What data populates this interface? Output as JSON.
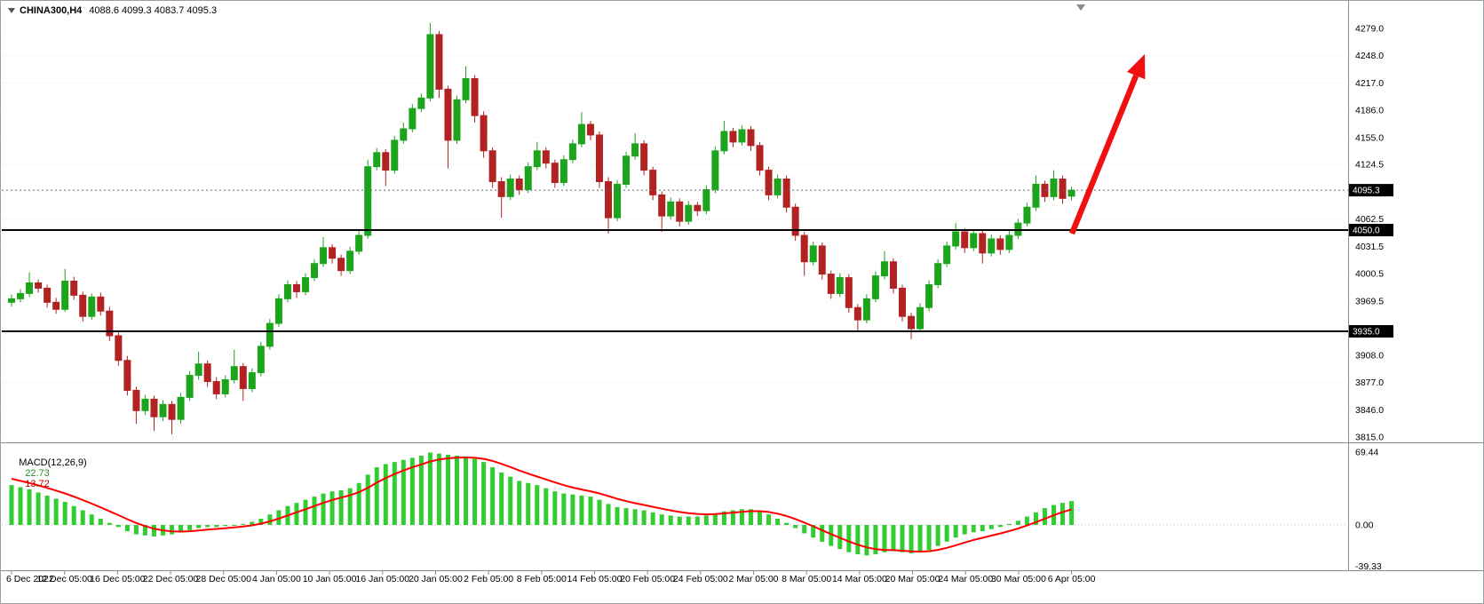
{
  "header": {
    "symbol": "CHINA300,H4",
    "ohlc": "4088.6 4099.3 4083.7 4095.3"
  },
  "macd_panel": {
    "label": "MACD(12,26,9)",
    "value_main": "22.73",
    "value_signal": "13.72"
  },
  "price_axis": {
    "ticks": [
      "4279.0",
      "4248.0",
      "4217.0",
      "4186.0",
      "4155.0",
      "4124.5",
      "4093.5",
      "4062.5",
      "4031.5",
      "4000.5",
      "3969.5",
      "3938.5",
      "3908.0",
      "3877.0",
      "3846.0",
      "3815.0"
    ],
    "badges": [
      {
        "label": "4095.3",
        "price": 4095.3,
        "type": "current-price"
      },
      {
        "label": "4050.0",
        "price": 4050.0,
        "type": "line"
      },
      {
        "label": "3935.0",
        "price": 3935.0,
        "type": "line"
      }
    ]
  },
  "colors": {
    "bull": "#1ca41c",
    "bear": "#b22222",
    "hist": "#32cd32",
    "signal": "#ff0000",
    "grid": "#e4e4ec",
    "separator": "#8a8a8a",
    "axis_text": "#000000",
    "badge_bg": "#000000",
    "badge_text": "#ffffff",
    "line_black": "#000000",
    "arrow": "#f01010",
    "current_price_dash": "#666666",
    "shift_marker": "#8a8a8a"
  },
  "annotations": {
    "arrow": {
      "from": [
        1206,
        262
      ],
      "tip": [
        1288,
        60
      ],
      "width": 6.5
    },
    "shift_marker_x": 1216
  },
  "chart_data": [
    {
      "type": "candlestick",
      "title": "CHINA300 H4",
      "ohlc_current": {
        "open": 4088.6,
        "high": 4099.3,
        "low": 4083.7,
        "close": 4095.3
      },
      "price_line": 4095.3,
      "hlines": [
        4050.0,
        3935.0
      ],
      "ylim": [
        3815.0,
        4279.0
      ],
      "y_ticks": [
        4279.0,
        4248.0,
        4217.0,
        4186.0,
        4155.0,
        4124.5,
        4093.5,
        4062.5,
        4031.5,
        4000.5,
        3969.5,
        3938.5,
        3908.0,
        3877.0,
        3846.0,
        3815.0
      ],
      "x_labels": [
        "6 Dec 2022",
        "12 Dec 05:00",
        "16 Dec 05:00",
        "22 Dec 05:00",
        "28 Dec 05:00",
        "4 Jan 05:00",
        "10 Jan 05:00",
        "16 Jan 05:00",
        "20 Jan 05:00",
        "2 Feb 05:00",
        "8 Feb 05:00",
        "14 Feb 05:00",
        "20 Feb 05:00",
        "24 Feb 05:00",
        "2 Mar 05:00",
        "8 Mar 05:00",
        "14 Mar 05:00",
        "20 Mar 05:00",
        "24 Mar 05:00",
        "30 Mar 05:00",
        "6 Apr 05:00"
      ],
      "candles": [
        [
          3968,
          3977,
          3963,
          3972
        ],
        [
          3972,
          3983,
          3968,
          3978
        ],
        [
          3978,
          4002,
          3974,
          3990
        ],
        [
          3990,
          3994,
          3979,
          3984
        ],
        [
          3984,
          3988,
          3962,
          3968
        ],
        [
          3968,
          3973,
          3955,
          3960
        ],
        [
          3960,
          4006,
          3957,
          3992
        ],
        [
          3992,
          3997,
          3971,
          3976
        ],
        [
          3976,
          3980,
          3946,
          3952
        ],
        [
          3952,
          3978,
          3948,
          3974
        ],
        [
          3974,
          3979,
          3953,
          3958
        ],
        [
          3958,
          3963,
          3924,
          3930
        ],
        [
          3930,
          3935,
          3896,
          3902
        ],
        [
          3902,
          3907,
          3862,
          3868
        ],
        [
          3868,
          3872,
          3830,
          3845
        ],
        [
          3845,
          3863,
          3840,
          3858
        ],
        [
          3858,
          3862,
          3822,
          3838
        ],
        [
          3838,
          3857,
          3833,
          3852
        ],
        [
          3852,
          3856,
          3818,
          3835
        ],
        [
          3835,
          3865,
          3830,
          3860
        ],
        [
          3860,
          3890,
          3856,
          3885
        ],
        [
          3885,
          3912,
          3880,
          3898
        ],
        [
          3898,
          3902,
          3872,
          3878
        ],
        [
          3878,
          3883,
          3858,
          3864
        ],
        [
          3864,
          3885,
          3860,
          3880
        ],
        [
          3880,
          3914,
          3876,
          3895
        ],
        [
          3895,
          3899,
          3856,
          3870
        ],
        [
          3870,
          3893,
          3866,
          3888
        ],
        [
          3888,
          3923,
          3884,
          3918
        ],
        [
          3918,
          3949,
          3914,
          3944
        ],
        [
          3944,
          3977,
          3940,
          3972
        ],
        [
          3972,
          3993,
          3968,
          3988
        ],
        [
          3988,
          3992,
          3973,
          3980
        ],
        [
          3980,
          4001,
          3976,
          3996
        ],
        [
          3996,
          4017,
          3992,
          4012
        ],
        [
          4012,
          4042,
          4008,
          4030
        ],
        [
          4030,
          4034,
          4012,
          4018
        ],
        [
          4018,
          4022,
          3998,
          4004
        ],
        [
          4004,
          4031,
          4000,
          4026
        ],
        [
          4026,
          4049,
          4022,
          4044
        ],
        [
          4044,
          4130,
          4040,
          4122
        ],
        [
          4122,
          4143,
          4118,
          4138
        ],
        [
          4138,
          4142,
          4100,
          4118
        ],
        [
          4118,
          4157,
          4114,
          4152
        ],
        [
          4152,
          4172,
          4148,
          4165
        ],
        [
          4165,
          4193,
          4161,
          4188
        ],
        [
          4188,
          4205,
          4184,
          4200
        ],
        [
          4200,
          4285,
          4196,
          4272
        ],
        [
          4272,
          4276,
          4200,
          4210
        ],
        [
          4210,
          4214,
          4120,
          4152
        ],
        [
          4152,
          4203,
          4148,
          4198
        ],
        [
          4198,
          4236,
          4194,
          4222
        ],
        [
          4222,
          4226,
          4172,
          4180
        ],
        [
          4180,
          4185,
          4132,
          4140
        ],
        [
          4140,
          4144,
          4098,
          4105
        ],
        [
          4105,
          4110,
          4064,
          4088
        ],
        [
          4088,
          4113,
          4084,
          4108
        ],
        [
          4108,
          4112,
          4090,
          4096
        ],
        [
          4096,
          4127,
          4092,
          4122
        ],
        [
          4122,
          4150,
          4118,
          4140
        ],
        [
          4140,
          4144,
          4120,
          4126
        ],
        [
          4126,
          4130,
          4098,
          4104
        ],
        [
          4104,
          4135,
          4100,
          4130
        ],
        [
          4130,
          4153,
          4126,
          4148
        ],
        [
          4148,
          4184,
          4144,
          4170
        ],
        [
          4170,
          4174,
          4152,
          4158
        ],
        [
          4158,
          4162,
          4098,
          4105
        ],
        [
          4105,
          4110,
          4046,
          4064
        ],
        [
          4064,
          4107,
          4060,
          4102
        ],
        [
          4102,
          4139,
          4098,
          4134
        ],
        [
          4134,
          4160,
          4130,
          4148
        ],
        [
          4148,
          4152,
          4112,
          4118
        ],
        [
          4118,
          4122,
          4084,
          4090
        ],
        [
          4090,
          4094,
          4048,
          4066
        ],
        [
          4066,
          4087,
          4062,
          4082
        ],
        [
          4082,
          4086,
          4054,
          4060
        ],
        [
          4060,
          4083,
          4056,
          4078
        ],
        [
          4078,
          4082,
          4066,
          4072
        ],
        [
          4072,
          4101,
          4068,
          4096
        ],
        [
          4096,
          4145,
          4092,
          4140
        ],
        [
          4140,
          4174,
          4136,
          4162
        ],
        [
          4162,
          4166,
          4144,
          4150
        ],
        [
          4150,
          4169,
          4146,
          4164
        ],
        [
          4164,
          4168,
          4140,
          4146
        ],
        [
          4146,
          4150,
          4112,
          4118
        ],
        [
          4118,
          4122,
          4084,
          4090
        ],
        [
          4090,
          4113,
          4086,
          4108
        ],
        [
          4108,
          4112,
          4070,
          4076
        ],
        [
          4076,
          4080,
          4038,
          4044
        ],
        [
          4044,
          4048,
          3998,
          4014
        ],
        [
          4014,
          4037,
          4010,
          4032
        ],
        [
          4032,
          4036,
          3994,
          4000
        ],
        [
          4000,
          4004,
          3972,
          3978
        ],
        [
          3978,
          4001,
          3974,
          3996
        ],
        [
          3996,
          4000,
          3956,
          3962
        ],
        [
          3962,
          3966,
          3934,
          3948
        ],
        [
          3948,
          3977,
          3944,
          3972
        ],
        [
          3972,
          4003,
          3968,
          3998
        ],
        [
          3998,
          4026,
          3994,
          4014
        ],
        [
          4014,
          4018,
          3978,
          3984
        ],
        [
          3984,
          3988,
          3946,
          3952
        ],
        [
          3952,
          3956,
          3926,
          3938
        ],
        [
          3938,
          3967,
          3934,
          3962
        ],
        [
          3962,
          3993,
          3958,
          3988
        ],
        [
          3988,
          4017,
          3984,
          4012
        ],
        [
          4012,
          4037,
          4008,
          4032
        ],
        [
          4032,
          4058,
          4028,
          4048
        ],
        [
          4048,
          4052,
          4024,
          4030
        ],
        [
          4030,
          4051,
          4026,
          4046
        ],
        [
          4046,
          4050,
          4012,
          4024
        ],
        [
          4024,
          4045,
          4020,
          4040
        ],
        [
          4040,
          4044,
          4022,
          4028
        ],
        [
          4028,
          4049,
          4024,
          4044
        ],
        [
          4044,
          4063,
          4040,
          4058
        ],
        [
          4058,
          4081,
          4054,
          4076
        ],
        [
          4076,
          4112,
          4072,
          4102
        ],
        [
          4102,
          4106,
          4082,
          4088
        ],
        [
          4088,
          4118,
          4084,
          4108
        ],
        [
          4108,
          4112,
          4080,
          4086
        ],
        [
          4088.6,
          4099.3,
          4083.7,
          4095.3
        ]
      ]
    },
    {
      "type": "bar",
      "title": "MACD(12,26,9)",
      "current_values": [
        22.73,
        13.72
      ],
      "y_ticks": [
        "69.44",
        "0.00",
        "-39.33"
      ],
      "ylim": [
        -42,
        72
      ],
      "signal_seed": 46,
      "signal_smoothing": 0.25,
      "histogram": [
        38,
        36,
        34,
        31,
        28,
        25,
        22,
        18,
        14,
        10,
        6,
        2,
        -2,
        -6,
        -9,
        -10,
        -11,
        -10,
        -9,
        -7,
        -5,
        -3,
        -2,
        -2,
        -1,
        0,
        1,
        3,
        6,
        10,
        14,
        18,
        21,
        24,
        27,
        30,
        32,
        33,
        35,
        40,
        48,
        55,
        58,
        60,
        62,
        64,
        66,
        69,
        68,
        67,
        66,
        65,
        63,
        60,
        55,
        50,
        46,
        42,
        40,
        38,
        35,
        32,
        30,
        29,
        28,
        27,
        24,
        20,
        17,
        16,
        15,
        14,
        12,
        10,
        9,
        8,
        8,
        8,
        9,
        11,
        13,
        14,
        15,
        15,
        13,
        10,
        6,
        2,
        -3,
        -8,
        -12,
        -16,
        -20,
        -23,
        -26,
        -28,
        -29,
        -28,
        -26,
        -25,
        -26,
        -27,
        -26,
        -24,
        -20,
        -16,
        -12,
        -9,
        -7,
        -6,
        -4,
        -2,
        1,
        4,
        8,
        12,
        16,
        19,
        21,
        22.73
      ]
    }
  ]
}
